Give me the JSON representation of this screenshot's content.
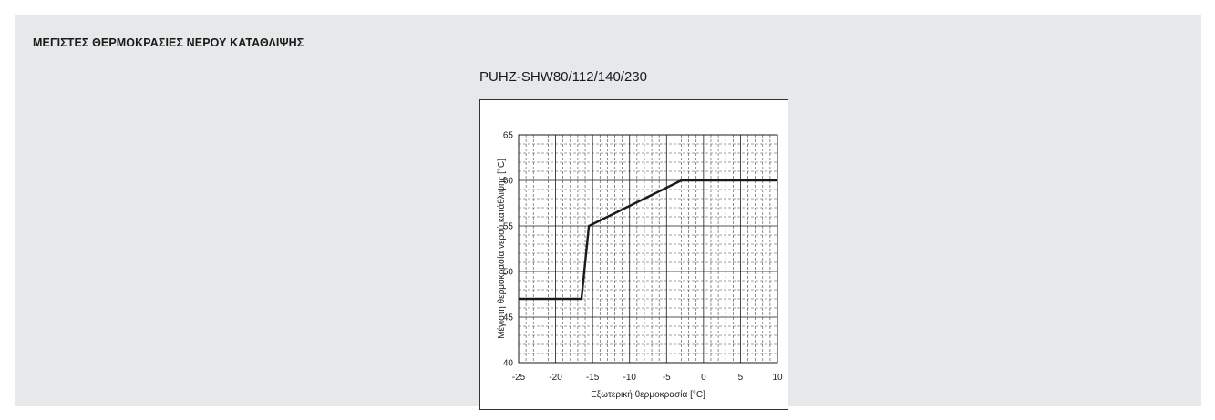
{
  "heading": "ΜΕΓΙΣΤΕΣ ΘΕΡΜΟΚΡΑΣΙΕΣ ΝΕΡΟΥ ΚΑΤΑΘΛΙΨΗΣ",
  "chart_data": {
    "type": "line",
    "title": "PUHZ-SHW80/112/140/230",
    "xlabel": "Εξωτερική θερμοκρασία [°C]",
    "ylabel": "Μέγιστη θερμοκρασία νερού κατάθλιψης [°C]",
    "xlim": [
      -25,
      10
    ],
    "ylim": [
      40,
      65
    ],
    "xticks": [
      -25,
      -20,
      -15,
      -10,
      -5,
      0,
      5,
      10
    ],
    "yticks": [
      40,
      45,
      50,
      55,
      60,
      65
    ],
    "grid": true,
    "legend": "none",
    "colors": {
      "line": "#1a1a1a",
      "grid": "#1a1a1a",
      "background": "#ffffff",
      "panel": "#e6e8e9"
    },
    "series": [
      {
        "x": [
          -25,
          -16.5,
          -15.5,
          -3,
          10
        ],
        "y": [
          47,
          47,
          55,
          60,
          60
        ]
      }
    ]
  }
}
